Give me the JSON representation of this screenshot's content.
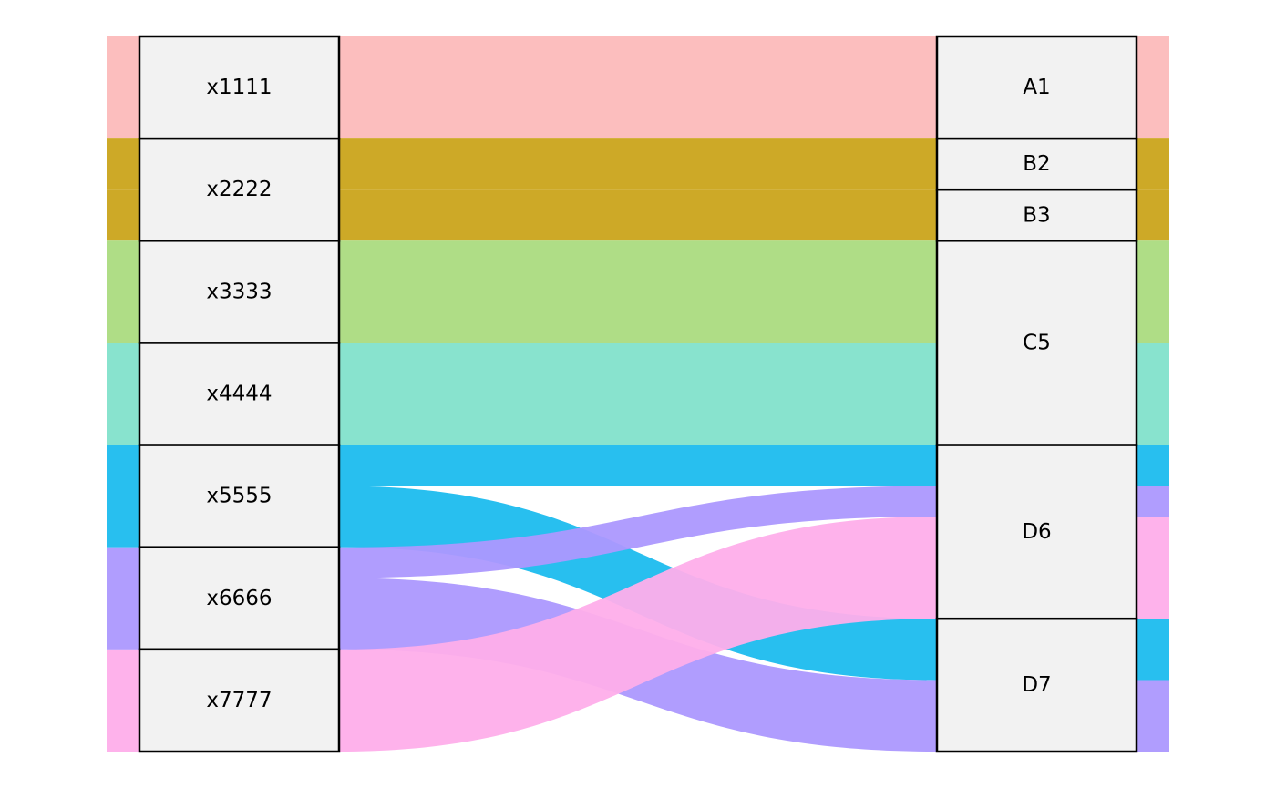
{
  "chart_data": {
    "type": "alluvial",
    "axes": [
      {
        "strata": [
          "x1111",
          "x2222",
          "x3333",
          "x4444",
          "x5555",
          "x6666",
          "x7777"
        ]
      },
      {
        "strata": [
          "A1",
          "B2",
          "B3",
          "C5",
          "D6",
          "D7"
        ]
      }
    ],
    "flows": [
      {
        "from": "x1111",
        "to": "A1",
        "value": 2,
        "color": "#fcbabb"
      },
      {
        "from": "x2222",
        "to": "B2",
        "value": 1,
        "color": "#caa41b"
      },
      {
        "from": "x2222",
        "to": "B3",
        "value": 1,
        "color": "#caa41b"
      },
      {
        "from": "x3333",
        "to": "C5",
        "value": 2,
        "color": "#abdb7f"
      },
      {
        "from": "x4444",
        "to": "C5",
        "value": 2,
        "color": "#82e1cb"
      },
      {
        "from": "x5555",
        "to": "D6",
        "value": 0.8,
        "color": "#1cbcee"
      },
      {
        "from": "x5555",
        "to": "D7",
        "value": 1.2,
        "color": "#1cbcee"
      },
      {
        "from": "x6666",
        "to": "D6",
        "value": 0.6,
        "color": "#ac98fe"
      },
      {
        "from": "x6666",
        "to": "D7",
        "value": 1.4,
        "color": "#ac98fe"
      },
      {
        "from": "x7777",
        "to": "D6",
        "value": 2,
        "color": "#feaeea"
      }
    ]
  }
}
